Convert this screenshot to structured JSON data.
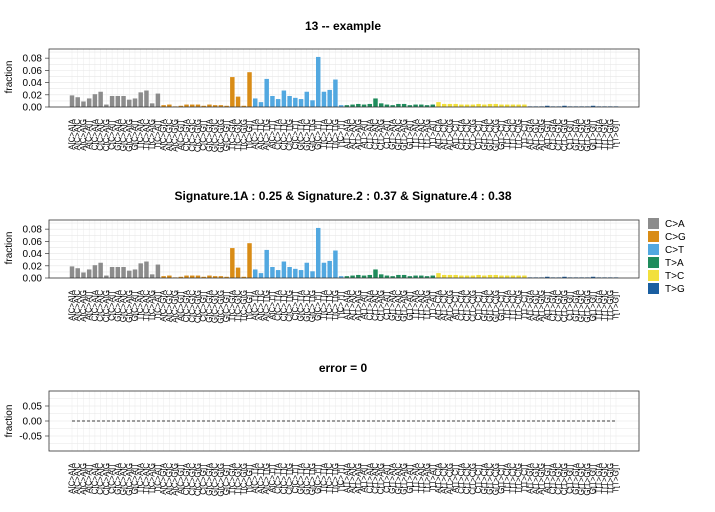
{
  "categories": [
    "ACA",
    "ACC",
    "ACG",
    "ACT",
    "CCA",
    "CCC",
    "CCG",
    "CCT",
    "GCA",
    "GCC",
    "GCG",
    "GCT",
    "TCA",
    "TCC",
    "TCG",
    "TCT",
    "ATA",
    "ATC",
    "ATG",
    "ATT",
    "CTA",
    "CTC",
    "CTG",
    "CTT",
    "GTA",
    "GTC",
    "GTG",
    "GTT",
    "TTA",
    "TTC",
    "TTG",
    "TTT"
  ],
  "colors": {
    "C>A": "#8c8c8c",
    "C>G": "#d98c16",
    "C>T": "#52a8e0",
    "T>A": "#1f8c5c",
    "T>C": "#f2e03c",
    "T>G": "#1a5ea0"
  },
  "legend": {
    "placement": "right",
    "items": [
      {
        "label": "C>A",
        "color": "#8c8c8c"
      },
      {
        "label": "C>G",
        "color": "#d98c16"
      },
      {
        "label": "C>T",
        "color": "#52a8e0"
      },
      {
        "label": "T>A",
        "color": "#1f8c5c"
      },
      {
        "label": "T>C",
        "color": "#f2e03c"
      },
      {
        "label": "T>G",
        "color": "#1a5ea0"
      }
    ]
  },
  "chart_data": [
    {
      "type": "bar",
      "title": "13 -- example",
      "ylabel": "fraction",
      "ylim": [
        0,
        0.095
      ],
      "yticks": [
        "0.00",
        "0.02",
        "0.04",
        "0.06",
        "0.08"
      ],
      "grid": true,
      "groups": [
        "C>A",
        "C>G",
        "C>T",
        "T>A",
        "T>C",
        "T>G"
      ],
      "values": [
        0.019,
        0.016,
        0.009,
        0.014,
        0.021,
        0.025,
        0.004,
        0.018,
        0.018,
        0.018,
        0.012,
        0.014,
        0.024,
        0.027,
        0.006,
        0.022,
        0.003,
        0.004,
        0.001,
        0.002,
        0.004,
        0.004,
        0.004,
        0.002,
        0.004,
        0.003,
        0.003,
        0.002,
        0.049,
        0.017,
        0.002,
        0.057,
        0.014,
        0.008,
        0.046,
        0.018,
        0.013,
        0.027,
        0.018,
        0.015,
        0.013,
        0.025,
        0.011,
        0.082,
        0.025,
        0.028,
        0.045,
        0.003,
        0.003,
        0.004,
        0.005,
        0.004,
        0.005,
        0.014,
        0.006,
        0.004,
        0.003,
        0.005,
        0.005,
        0.003,
        0.004,
        0.004,
        0.003,
        0.004,
        0.008,
        0.005,
        0.005,
        0.005,
        0.004,
        0.004,
        0.004,
        0.005,
        0.004,
        0.005,
        0.005,
        0.004,
        0.004,
        0.004,
        0.004,
        0.004,
        0.001,
        0.001,
        0.001,
        0.002,
        0.001,
        0.001,
        0.002,
        0.001,
        0.001,
        0.001,
        0.001,
        0.002,
        0.001,
        0.001,
        0.001,
        0.001
      ]
    },
    {
      "type": "bar",
      "title": "Signature.1A : 0.25 & Signature.2 : 0.37 & Signature.4 : 0.38",
      "ylabel": "fraction",
      "ylim": [
        0,
        0.095
      ],
      "yticks": [
        "0.00",
        "0.02",
        "0.04",
        "0.06",
        "0.08"
      ],
      "grid": true,
      "groups": [
        "C>A",
        "C>G",
        "C>T",
        "T>A",
        "T>C",
        "T>G"
      ],
      "values": [
        0.019,
        0.016,
        0.009,
        0.014,
        0.021,
        0.025,
        0.004,
        0.018,
        0.018,
        0.018,
        0.012,
        0.014,
        0.024,
        0.027,
        0.006,
        0.022,
        0.003,
        0.004,
        0.001,
        0.002,
        0.004,
        0.004,
        0.004,
        0.002,
        0.004,
        0.003,
        0.003,
        0.002,
        0.049,
        0.017,
        0.002,
        0.057,
        0.014,
        0.008,
        0.046,
        0.018,
        0.013,
        0.027,
        0.018,
        0.015,
        0.013,
        0.025,
        0.011,
        0.082,
        0.025,
        0.028,
        0.045,
        0.003,
        0.003,
        0.004,
        0.005,
        0.004,
        0.005,
        0.014,
        0.006,
        0.004,
        0.003,
        0.005,
        0.005,
        0.003,
        0.004,
        0.004,
        0.003,
        0.004,
        0.008,
        0.005,
        0.005,
        0.005,
        0.004,
        0.004,
        0.004,
        0.005,
        0.004,
        0.005,
        0.005,
        0.004,
        0.004,
        0.004,
        0.004,
        0.004,
        0.001,
        0.001,
        0.001,
        0.002,
        0.001,
        0.001,
        0.002,
        0.001,
        0.001,
        0.001,
        0.001,
        0.002,
        0.001,
        0.001,
        0.001,
        0.001
      ]
    },
    {
      "type": "line",
      "title": "error = 0",
      "ylabel": "fraction",
      "ylim": [
        -0.1,
        0.1
      ],
      "yticks": [
        "-0.05",
        "0.00",
        "0.05"
      ],
      "grid": true,
      "line_style": "dashed",
      "values": "all-zero"
    }
  ]
}
